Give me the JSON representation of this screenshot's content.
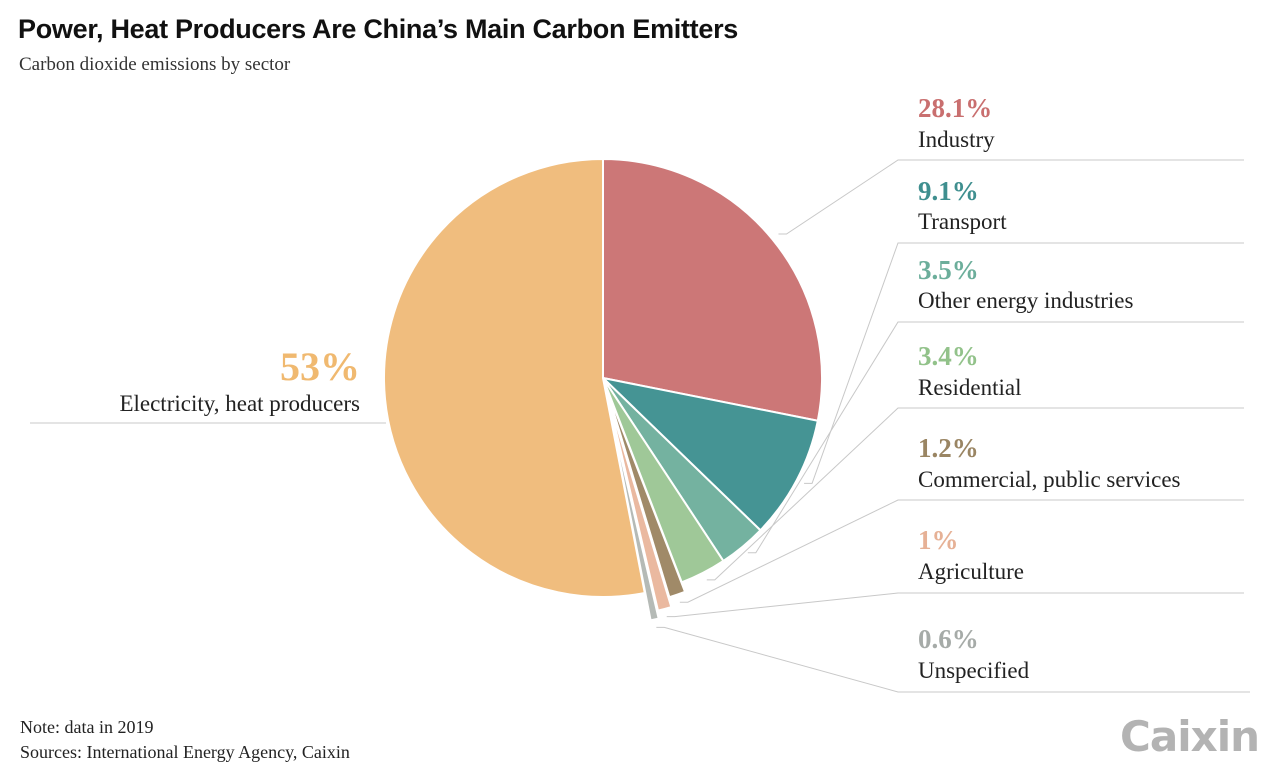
{
  "title": "Power, Heat Producers Are China’s Main Carbon Emitters",
  "subtitle": "Carbon dioxide emissions by sector",
  "note": "Note: data in 2019",
  "sources": "Sources: International Energy Agency, Caixin",
  "brand": "Caixin",
  "chart_data": {
    "type": "pie",
    "title": "Power, Heat Producers Are China’s Main Carbon Emitters",
    "subtitle": "Carbon dioxide emissions by sector",
    "slices": [
      {
        "label": "Industry",
        "value": 28.1,
        "display": "28.1%",
        "color": "#cc7777",
        "label_color": "#c96f6f"
      },
      {
        "label": "Transport",
        "value": 9.1,
        "display": "9.1%",
        "color": "#459494",
        "label_color": "#3f8f8f"
      },
      {
        "label": "Other energy industries",
        "value": 3.5,
        "display": "3.5%",
        "color": "#74b2a0",
        "label_color": "#6cae9b"
      },
      {
        "label": "Residential",
        "value": 3.4,
        "display": "3.4%",
        "color": "#9fc898",
        "label_color": "#92c28a"
      },
      {
        "label": "Commercial, public services",
        "value": 1.2,
        "display": "1.2%",
        "color": "#a08a68",
        "label_color": "#9a8563"
      },
      {
        "label": "Agriculture",
        "value": 1.0,
        "display": "1%",
        "color": "#eab9a0",
        "label_color": "#e6b196"
      },
      {
        "label": "Unspecified",
        "value": 0.6,
        "display": "0.6%",
        "color": "#b5bab6",
        "label_color": "#a6aba8"
      },
      {
        "label": "Electricity, heat producers",
        "value": 53.0,
        "display": "53%",
        "color": "#f0bd7e",
        "label_color": "#f0b970"
      }
    ]
  }
}
